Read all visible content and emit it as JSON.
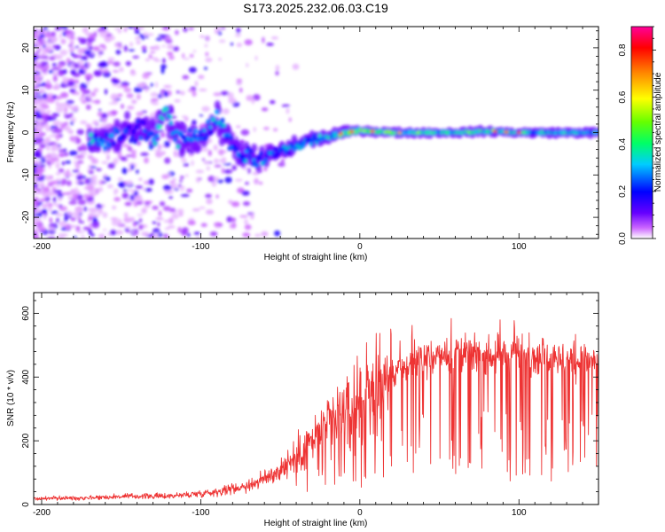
{
  "title": "S173.2025.232.06.03.C19",
  "chart_data": [
    {
      "type": "heatmap",
      "xlabel": "Height of straight line (km)",
      "ylabel": "Frequency (Hz)",
      "xlim": [
        -205,
        150
      ],
      "ylim": [
        -25,
        25
      ],
      "xticks": [
        -200,
        -100,
        0,
        100
      ],
      "yticks": [
        -20,
        -10,
        0,
        10,
        20
      ],
      "colorbar": {
        "label": "Normalized spectral amplitude",
        "ticks": [
          0.0,
          0.2,
          0.4,
          0.6,
          0.8
        ],
        "range": [
          0,
          0.9
        ]
      },
      "ridge": [
        {
          "height": -160,
          "frequency": -2,
          "amplitude": 0.45
        },
        {
          "height": -140,
          "frequency": 1,
          "amplitude": 0.3
        },
        {
          "height": -130,
          "frequency": -1,
          "amplitude": 0.4
        },
        {
          "height": -122,
          "frequency": 5,
          "amplitude": 0.5
        },
        {
          "height": -115,
          "frequency": -1.5,
          "amplitude": 0.4
        },
        {
          "height": -100,
          "frequency": -1.5,
          "amplitude": 0.4
        },
        {
          "height": -90,
          "frequency": 3,
          "amplitude": 0.4
        },
        {
          "height": -80,
          "frequency": -3,
          "amplitude": 0.4
        },
        {
          "height": -65,
          "frequency": -7,
          "amplitude": 0.35
        },
        {
          "height": -55,
          "frequency": -5,
          "amplitude": 0.35
        },
        {
          "height": -45,
          "frequency": -4,
          "amplitude": 0.35
        },
        {
          "height": -35,
          "frequency": -2,
          "amplitude": 0.4
        },
        {
          "height": -20,
          "frequency": -1,
          "amplitude": 0.5
        },
        {
          "height": -10,
          "frequency": 0,
          "amplitude": 0.65
        },
        {
          "height": 0,
          "frequency": 0.5,
          "amplitude": 0.7
        },
        {
          "height": 20,
          "frequency": 0,
          "amplitude": 0.6
        },
        {
          "height": 40,
          "frequency": 0,
          "amplitude": 0.55
        },
        {
          "height": 60,
          "frequency": 0,
          "amplitude": 0.55
        },
        {
          "height": 80,
          "frequency": 0.3,
          "amplitude": 0.6
        },
        {
          "height": 100,
          "frequency": 0,
          "amplitude": 0.55
        },
        {
          "height": 120,
          "frequency": 0,
          "amplitude": 0.5
        },
        {
          "height": 150,
          "frequency": 0,
          "amplitude": 0.5
        }
      ]
    },
    {
      "type": "line",
      "xlabel": "Height of straight line (km)",
      "ylabel": "SNR (10 * v/v)",
      "xlim": [
        -205,
        150
      ],
      "ylim": [
        0,
        665
      ],
      "xticks": [
        -200,
        -100,
        0,
        100
      ],
      "yticks": [
        0,
        200,
        400,
        600
      ],
      "series": [
        {
          "name": "SNR",
          "color": "#ee3333",
          "x": [
            -205,
            -190,
            -180,
            -170,
            -160,
            -150,
            -140,
            -130,
            -120,
            -110,
            -100,
            -90,
            -80,
            -70,
            -60,
            -50,
            -40,
            -30,
            -20,
            -10,
            0,
            10,
            20,
            30,
            40,
            50,
            60,
            70,
            80,
            90,
            100,
            110,
            120,
            130,
            140,
            150
          ],
          "y": [
            18,
            20,
            20,
            22,
            23,
            25,
            26,
            26,
            27,
            30,
            35,
            40,
            50,
            60,
            80,
            110,
            150,
            200,
            250,
            290,
            330,
            370,
            410,
            440,
            455,
            465,
            470,
            470,
            470,
            470,
            470,
            465,
            460,
            455,
            450,
            450
          ]
        }
      ]
    }
  ]
}
